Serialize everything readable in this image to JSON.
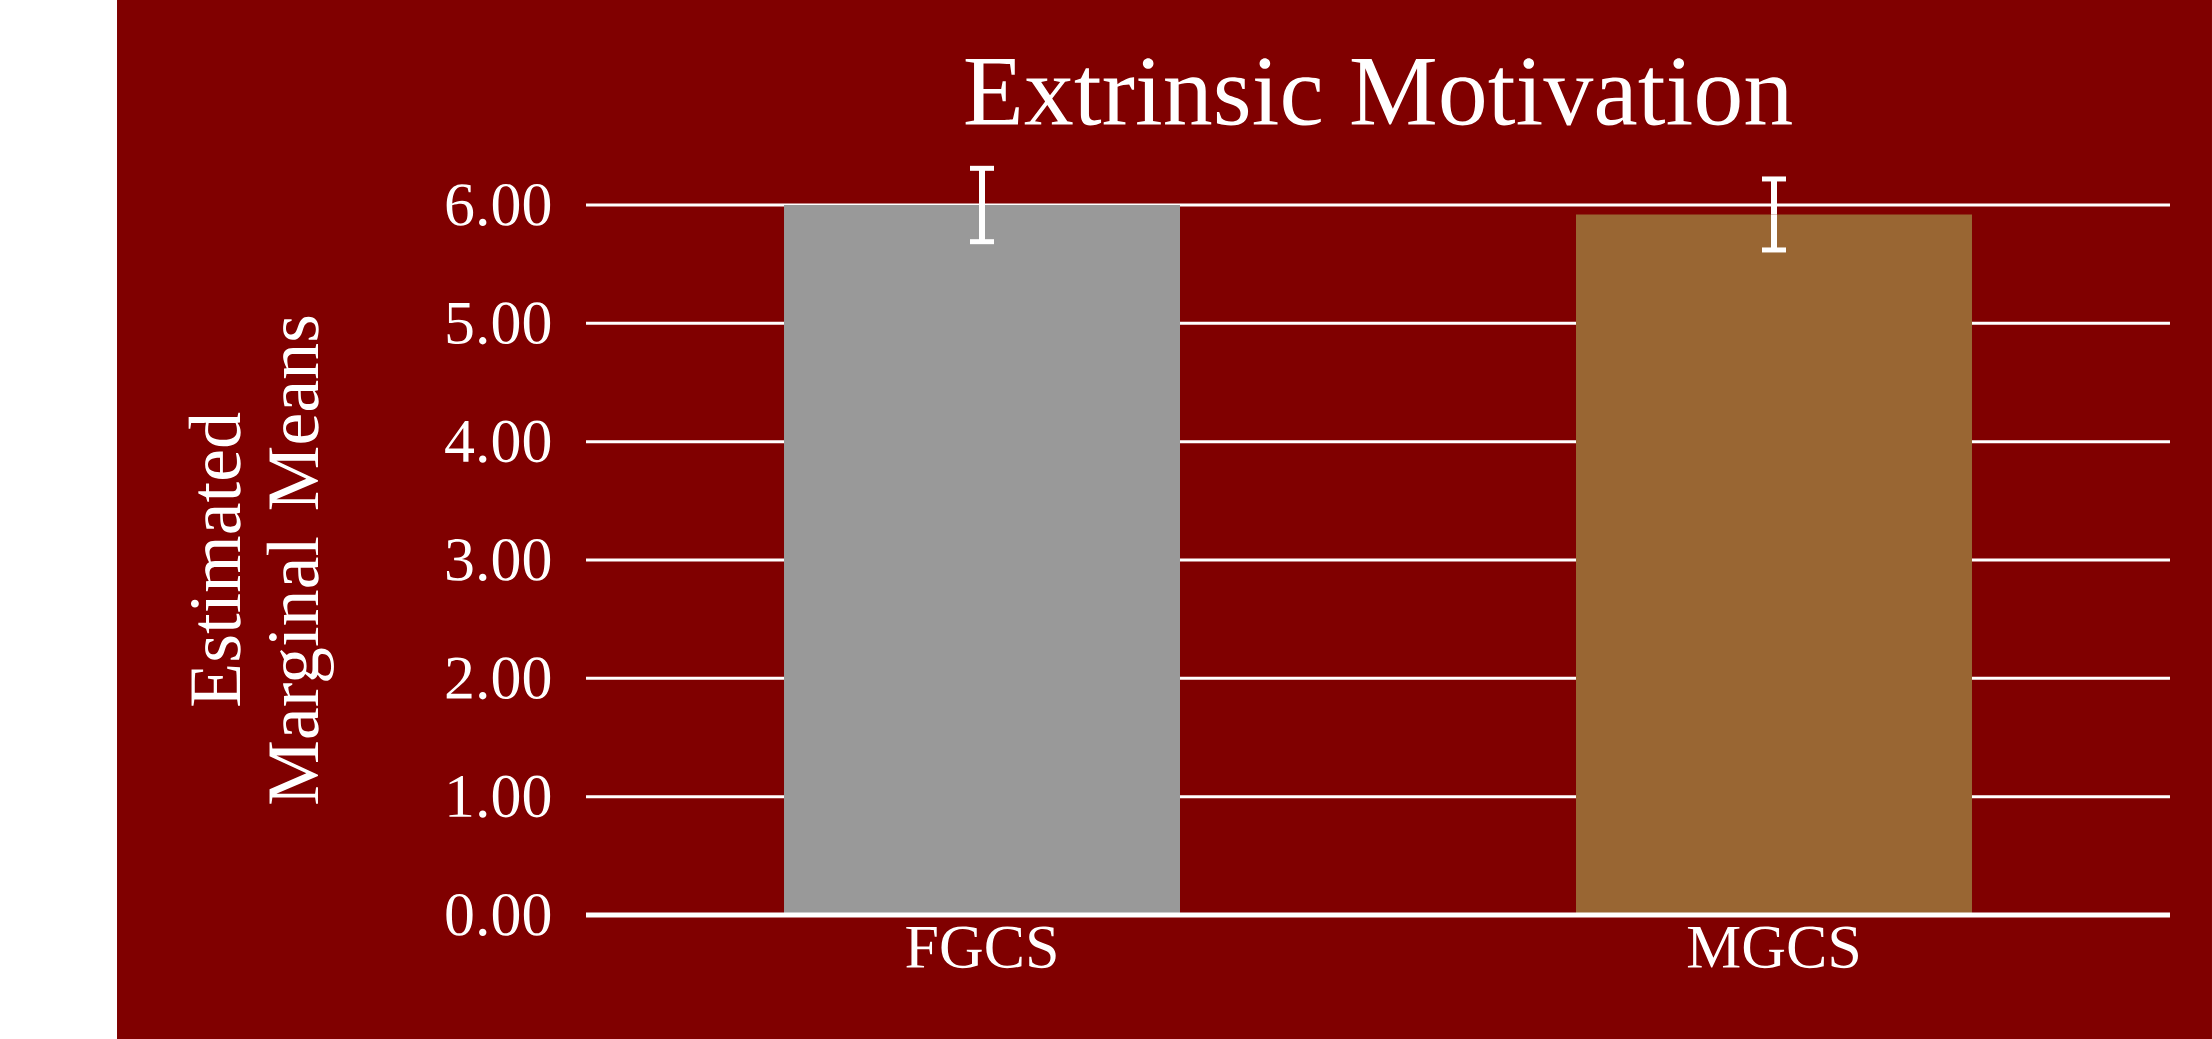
{
  "chart_data": {
    "type": "bar",
    "title": "Extrinsic Motivation",
    "ylabel": "Estimated Marginal Means",
    "categories": [
      "FGCS",
      "MGCS"
    ],
    "values": [
      6.0,
      5.92
    ],
    "errors": [
      0.31,
      0.3
    ],
    "colors": [
      "#999999",
      "#996633"
    ],
    "ylim": [
      0,
      6
    ],
    "yticks": [
      {
        "value": 0,
        "label": "0.00"
      },
      {
        "value": 1,
        "label": "1.00"
      },
      {
        "value": 2,
        "label": "2.00"
      },
      {
        "value": 3,
        "label": "3.00"
      },
      {
        "value": 4,
        "label": "4.00"
      },
      {
        "value": 5,
        "label": "5.00"
      },
      {
        "value": 6,
        "label": "6.00"
      }
    ],
    "grid": "y"
  }
}
